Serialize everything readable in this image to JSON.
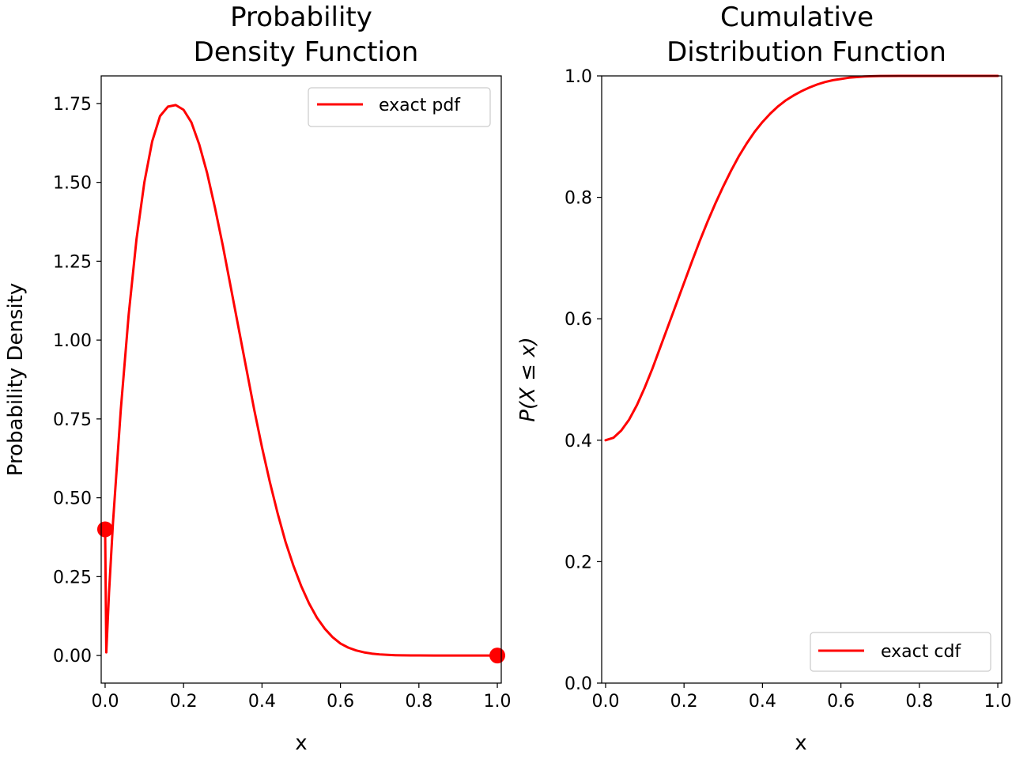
{
  "chart_data": [
    {
      "type": "line",
      "title_lines": [
        "Probability",
        "Density Function"
      ],
      "xlabel": "x",
      "ylabel": "Probability Density",
      "xlim": [
        -0.01,
        1.01
      ],
      "ylim": [
        -0.0875,
        1.8375
      ],
      "xticks": [
        0.0,
        0.2,
        0.4,
        0.6,
        0.8,
        1.0
      ],
      "xtick_labels": [
        "0.0",
        "0.2",
        "0.4",
        "0.6",
        "0.8",
        "1.0"
      ],
      "yticks": [
        0.0,
        0.25,
        0.5,
        0.75,
        1.0,
        1.25,
        1.5,
        1.75
      ],
      "ytick_labels": [
        "0.00",
        "0.25",
        "0.50",
        "0.75",
        "1.00",
        "1.25",
        "1.50",
        "1.75"
      ],
      "legend_position": "upper right",
      "series": [
        {
          "name": "exact pdf",
          "color": "#ff0000",
          "x": [
            0.0,
            0.003,
            0.01,
            0.02,
            0.04,
            0.06,
            0.08,
            0.1,
            0.12,
            0.14,
            0.16,
            0.18,
            0.2,
            0.22,
            0.24,
            0.26,
            0.28,
            0.3,
            0.32,
            0.34,
            0.36,
            0.38,
            0.4,
            0.42,
            0.44,
            0.46,
            0.48,
            0.5,
            0.52,
            0.54,
            0.56,
            0.58,
            0.6,
            0.62,
            0.64,
            0.66,
            0.68,
            0.7,
            0.72,
            0.74,
            0.76,
            0.78,
            0.8,
            0.84,
            0.88,
            0.92,
            0.96,
            1.0
          ],
          "y": [
            0.4,
            0.01,
            0.2,
            0.42,
            0.78,
            1.08,
            1.32,
            1.5,
            1.63,
            1.71,
            1.74,
            1.745,
            1.73,
            1.69,
            1.62,
            1.53,
            1.42,
            1.3,
            1.17,
            1.04,
            0.91,
            0.78,
            0.66,
            0.55,
            0.45,
            0.36,
            0.285,
            0.22,
            0.165,
            0.12,
            0.085,
            0.058,
            0.038,
            0.025,
            0.016,
            0.01,
            0.006,
            0.0035,
            0.002,
            0.001,
            0.0005,
            0.0002,
            0.0001,
            0.0,
            0.0,
            0.0,
            0.0,
            0.0
          ]
        }
      ],
      "point_masses": [
        {
          "x": 0.0,
          "y": 0.4
        },
        {
          "x": 1.0,
          "y": 0.0
        }
      ]
    },
    {
      "type": "line",
      "title_lines": [
        "Cumulative",
        "Distribution Function"
      ],
      "xlabel": "x",
      "ylabel": "P(X ≤ x)",
      "xlim": [
        -0.01,
        1.01
      ],
      "ylim": [
        0.0,
        1.0
      ],
      "xticks": [
        0.0,
        0.2,
        0.4,
        0.6,
        0.8,
        1.0
      ],
      "xtick_labels": [
        "0.0",
        "0.2",
        "0.4",
        "0.6",
        "0.8",
        "1.0"
      ],
      "yticks": [
        0.0,
        0.2,
        0.4,
        0.6,
        0.8,
        1.0
      ],
      "ytick_labels": [
        "0.0",
        "0.2",
        "0.4",
        "0.6",
        "0.8",
        "1.0"
      ],
      "legend_position": "lower right",
      "series": [
        {
          "name": "exact cdf",
          "color": "#ff0000",
          "x": [
            0.0,
            0.02,
            0.04,
            0.06,
            0.08,
            0.1,
            0.12,
            0.14,
            0.16,
            0.18,
            0.2,
            0.22,
            0.24,
            0.26,
            0.28,
            0.3,
            0.32,
            0.34,
            0.36,
            0.38,
            0.4,
            0.42,
            0.44,
            0.46,
            0.48,
            0.5,
            0.52,
            0.54,
            0.56,
            0.58,
            0.6,
            0.62,
            0.64,
            0.66,
            0.68,
            0.7,
            0.75,
            0.8,
            0.85,
            0.9,
            0.95,
            1.0
          ],
          "y": [
            0.4,
            0.404,
            0.416,
            0.434,
            0.458,
            0.487,
            0.519,
            0.554,
            0.589,
            0.624,
            0.659,
            0.694,
            0.728,
            0.76,
            0.79,
            0.818,
            0.844,
            0.868,
            0.889,
            0.908,
            0.924,
            0.938,
            0.95,
            0.96,
            0.968,
            0.975,
            0.981,
            0.986,
            0.99,
            0.993,
            0.995,
            0.997,
            0.998,
            0.999,
            0.9995,
            0.9998,
            1.0,
            1.0,
            1.0,
            1.0,
            1.0,
            1.0
          ]
        }
      ]
    }
  ]
}
